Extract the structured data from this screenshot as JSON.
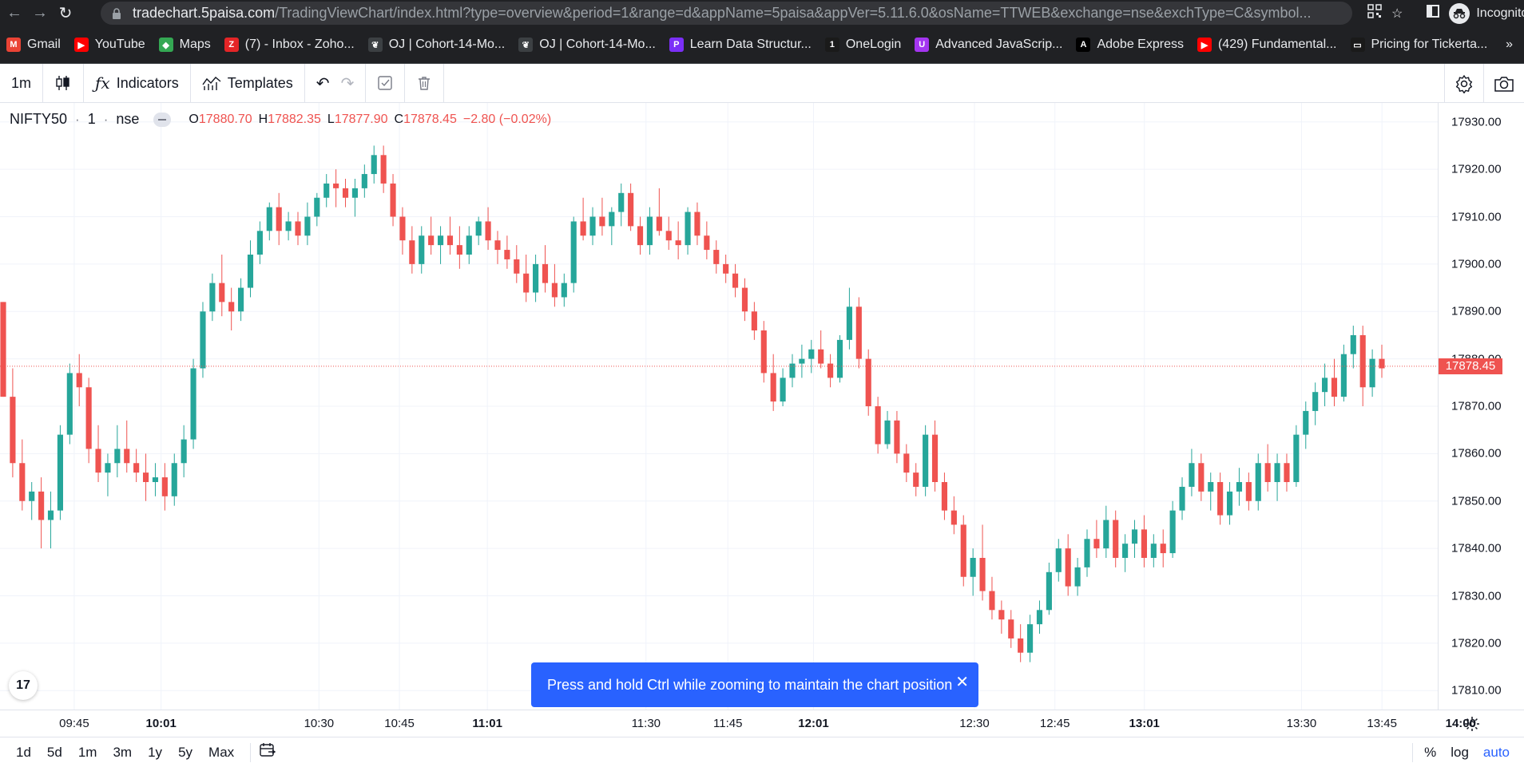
{
  "browser": {
    "url_host": "tradechart.5paisa.com",
    "url_path": "/TradingViewChart/index.html?type=overview&period=1&range=d&appName=5paisa&appVer=5.11.6.0&osName=TTWEB&exchange=nse&exchType=C&symbol...",
    "incognito_label": "Incognito"
  },
  "bookmarks": [
    {
      "label": "Gmail",
      "icon": "gmail-icon",
      "color": "#ea4335",
      "glyph": "M"
    },
    {
      "label": "YouTube",
      "icon": "youtube-icon",
      "color": "#ff0000",
      "glyph": "▶"
    },
    {
      "label": "Maps",
      "icon": "maps-icon",
      "color": "#34a853",
      "glyph": "◆"
    },
    {
      "label": "(7) - Inbox - Zoho...",
      "icon": "zoho-icon",
      "color": "#e42527",
      "glyph": "Z"
    },
    {
      "label": "OJ | Cohort-14-Mo...",
      "icon": "oj-icon",
      "color": "#3c4043",
      "glyph": "❦"
    },
    {
      "label": "OJ | Cohort-14-Mo...",
      "icon": "oj-icon",
      "color": "#3c4043",
      "glyph": "❦"
    },
    {
      "label": "Learn Data Structur...",
      "icon": "learn-icon",
      "color": "#7b2ff7",
      "glyph": "P"
    },
    {
      "label": "OneLogin",
      "icon": "onelogin-icon",
      "color": "#1a1a1a",
      "glyph": "1"
    },
    {
      "label": "Advanced JavaScrip...",
      "icon": "udemy-icon",
      "color": "#a435f0",
      "glyph": "U"
    },
    {
      "label": "Adobe Express",
      "icon": "adobe-icon",
      "color": "#000000",
      "glyph": "A"
    },
    {
      "label": "(429) Fundamental...",
      "icon": "youtube-icon",
      "color": "#ff0000",
      "glyph": "▶"
    },
    {
      "label": "Pricing for Tickerta...",
      "icon": "tickertape-icon",
      "color": "#1a1a1a",
      "glyph": "▭"
    }
  ],
  "bookmarks_more": "»",
  "toolbar": {
    "interval": "1m",
    "indicators": "Indicators",
    "templates": "Templates"
  },
  "legend": {
    "symbol": "NIFTY50",
    "interval": "1",
    "exchange": "nse",
    "open_key": "O",
    "open": "17880.70",
    "high_key": "H",
    "high": "17882.35",
    "low_key": "L",
    "low": "17877.90",
    "close_key": "C",
    "close": "17878.45",
    "change": "−2.80 (−0.02%)"
  },
  "price_axis": {
    "ticks": [
      "17930.00",
      "17920.00",
      "17910.00",
      "17900.00",
      "17890.00",
      "17880.00",
      "17870.00",
      "17860.00",
      "17850.00",
      "17840.00",
      "17830.00",
      "17820.00",
      "17810.00"
    ],
    "tick_values": [
      17930,
      17920,
      17910,
      17900,
      17890,
      17880,
      17870,
      17860,
      17850,
      17840,
      17830,
      17820,
      17810
    ],
    "last_price": "17878.45",
    "last_value": 17878.45
  },
  "time_axis": {
    "ticks": [
      {
        "label": "09:45",
        "bold": false,
        "x": 0.0487
      },
      {
        "label": "10:01",
        "bold": true,
        "x": 0.1057
      },
      {
        "label": "10:30",
        "bold": false,
        "x": 0.2093
      },
      {
        "label": "10:45",
        "bold": false,
        "x": 0.2621
      },
      {
        "label": "11:01",
        "bold": true,
        "x": 0.3198
      },
      {
        "label": "11:30",
        "bold": false,
        "x": 0.4239
      },
      {
        "label": "11:45",
        "bold": false,
        "x": 0.4776
      },
      {
        "label": "12:01",
        "bold": true,
        "x": 0.5338
      },
      {
        "label": "12:30",
        "bold": false,
        "x": 0.6394
      },
      {
        "label": "12:45",
        "bold": false,
        "x": 0.6922
      },
      {
        "label": "13:01",
        "bold": true,
        "x": 0.7509
      },
      {
        "label": "13:30",
        "bold": false,
        "x": 0.854
      },
      {
        "label": "13:45",
        "bold": false,
        "x": 0.9068
      },
      {
        "label": "14:00",
        "bold": true,
        "x": 0.9585
      }
    ]
  },
  "toast": {
    "message": "Press and hold Ctrl while zooming to maintain the chart position"
  },
  "ranges": [
    "1d",
    "5d",
    "1m",
    "3m",
    "1y",
    "5y",
    "Max"
  ],
  "bottom_options": {
    "percent": "%",
    "log": "log",
    "auto": "auto"
  },
  "tv_logo": "17",
  "colors": {
    "up": "#26a69a",
    "down": "#ef5350",
    "accent": "#2962ff"
  },
  "chart_data": {
    "type": "candlestick",
    "symbol": "NIFTY50",
    "ylim": [
      17806,
      17934
    ],
    "candles": [
      [
        17892,
        17892,
        17872,
        17872
      ],
      [
        17872,
        17878,
        17855,
        17858
      ],
      [
        17858,
        17863,
        17848,
        17850
      ],
      [
        17850,
        17854,
        17846,
        17852
      ],
      [
        17852,
        17855,
        17840,
        17846
      ],
      [
        17846,
        17852,
        17840,
        17848
      ],
      [
        17848,
        17866,
        17846,
        17864
      ],
      [
        17864,
        17879,
        17862,
        17877
      ],
      [
        17877,
        17881,
        17870,
        17874
      ],
      [
        17874,
        17876,
        17858,
        17861
      ],
      [
        17861,
        17866,
        17854,
        17856
      ],
      [
        17856,
        17860,
        17851,
        17858
      ],
      [
        17858,
        17866,
        17855,
        17861
      ],
      [
        17861,
        17867,
        17856,
        17858
      ],
      [
        17858,
        17861,
        17854,
        17856
      ],
      [
        17856,
        17860,
        17850,
        17854
      ],
      [
        17854,
        17858,
        17851,
        17855
      ],
      [
        17855,
        17858,
        17848,
        17851
      ],
      [
        17851,
        17860,
        17849,
        17858
      ],
      [
        17858,
        17866,
        17855,
        17863
      ],
      [
        17863,
        17880,
        17861,
        17878
      ],
      [
        17878,
        17892,
        17876,
        17890
      ],
      [
        17890,
        17898,
        17888,
        17896
      ],
      [
        17896,
        17902,
        17889,
        17892
      ],
      [
        17892,
        17895,
        17886,
        17890
      ],
      [
        17890,
        17897,
        17888,
        17895
      ],
      [
        17895,
        17905,
        17893,
        17902
      ],
      [
        17902,
        17909,
        17900,
        17907
      ],
      [
        17907,
        17913,
        17905,
        17912
      ],
      [
        17912,
        17915,
        17904,
        17907
      ],
      [
        17907,
        17911,
        17905,
        17909
      ],
      [
        17909,
        17911,
        17904,
        17906
      ],
      [
        17906,
        17913,
        17904,
        17910
      ],
      [
        17910,
        17915,
        17908,
        17914
      ],
      [
        17914,
        17919,
        17912,
        17917
      ],
      [
        17917,
        17920,
        17912,
        17916
      ],
      [
        17916,
        17918,
        17912,
        17914
      ],
      [
        17914,
        17918,
        17910,
        17916
      ],
      [
        17916,
        17921,
        17914,
        17919
      ],
      [
        17919,
        17925,
        17917,
        17923
      ],
      [
        17923,
        17925,
        17915,
        17917
      ],
      [
        17917,
        17919,
        17908,
        17910
      ],
      [
        17910,
        17912,
        17902,
        17905
      ],
      [
        17905,
        17908,
        17898,
        17900
      ],
      [
        17900,
        17908,
        17898,
        17906
      ],
      [
        17906,
        17910,
        17902,
        17904
      ],
      [
        17904,
        17908,
        17900,
        17906
      ],
      [
        17906,
        17910,
        17902,
        17904
      ],
      [
        17904,
        17908,
        17899,
        17902
      ],
      [
        17902,
        17908,
        17900,
        17906
      ],
      [
        17906,
        17910,
        17904,
        17909
      ],
      [
        17909,
        17912,
        17903,
        17905
      ],
      [
        17905,
        17907,
        17900,
        17903
      ],
      [
        17903,
        17906,
        17899,
        17901
      ],
      [
        17901,
        17904,
        17896,
        17898
      ],
      [
        17898,
        17902,
        17892,
        17894
      ],
      [
        17894,
        17902,
        17892,
        17900
      ],
      [
        17900,
        17904,
        17894,
        17896
      ],
      [
        17896,
        17900,
        17891,
        17893
      ],
      [
        17893,
        17898,
        17891,
        17896
      ],
      [
        17896,
        17910,
        17894,
        17909
      ],
      [
        17909,
        17914,
        17905,
        17906
      ],
      [
        17906,
        17912,
        17904,
        17910
      ],
      [
        17910,
        17914,
        17906,
        17908
      ],
      [
        17908,
        17912,
        17904,
        17911
      ],
      [
        17911,
        17917,
        17908,
        17915
      ],
      [
        17915,
        17917,
        17907,
        17908
      ],
      [
        17908,
        17910,
        17902,
        17904
      ],
      [
        17904,
        17912,
        17902,
        17910
      ],
      [
        17910,
        17916,
        17906,
        17907
      ],
      [
        17907,
        17910,
        17903,
        17905
      ],
      [
        17905,
        17909,
        17901,
        17904
      ],
      [
        17904,
        17912,
        17902,
        17911
      ],
      [
        17911,
        17913,
        17904,
        17906
      ],
      [
        17906,
        17909,
        17901,
        17903
      ],
      [
        17903,
        17905,
        17898,
        17900
      ],
      [
        17900,
        17902,
        17896,
        17898
      ],
      [
        17898,
        17900,
        17893,
        17895
      ],
      [
        17895,
        17897,
        17888,
        17890
      ],
      [
        17890,
        17892,
        17884,
        17886
      ],
      [
        17886,
        17888,
        17875,
        17877
      ],
      [
        17877,
        17881,
        17869,
        17871
      ],
      [
        17871,
        17878,
        17870,
        17876
      ],
      [
        17876,
        17881,
        17874,
        17879
      ],
      [
        17879,
        17883,
        17876,
        17880
      ],
      [
        17880,
        17884,
        17877,
        17882
      ],
      [
        17882,
        17886,
        17878,
        17879
      ],
      [
        17879,
        17881,
        17874,
        17876
      ],
      [
        17876,
        17885,
        17875,
        17884
      ],
      [
        17884,
        17895,
        17882,
        17891
      ],
      [
        17891,
        17893,
        17878,
        17880
      ],
      [
        17880,
        17882,
        17868,
        17870
      ],
      [
        17870,
        17872,
        17860,
        17862
      ],
      [
        17862,
        17869,
        17861,
        17867
      ],
      [
        17867,
        17869,
        17858,
        17860
      ],
      [
        17860,
        17862,
        17854,
        17856
      ],
      [
        17856,
        17858,
        17851,
        17853
      ],
      [
        17853,
        17866,
        17851,
        17864
      ],
      [
        17864,
        17867,
        17852,
        17854
      ],
      [
        17854,
        17856,
        17846,
        17848
      ],
      [
        17848,
        17851,
        17843,
        17845
      ],
      [
        17845,
        17847,
        17832,
        17834
      ],
      [
        17834,
        17840,
        17830,
        17838
      ],
      [
        17838,
        17845,
        17829,
        17831
      ],
      [
        17831,
        17834,
        17825,
        17827
      ],
      [
        17827,
        17829,
        17822,
        17825
      ],
      [
        17825,
        17827,
        17819,
        17821
      ],
      [
        17821,
        17824,
        17816,
        17818
      ],
      [
        17818,
        17826,
        17816,
        17824
      ],
      [
        17824,
        17829,
        17822,
        17827
      ],
      [
        17827,
        17837,
        17826,
        17835
      ],
      [
        17835,
        17842,
        17833,
        17840
      ],
      [
        17840,
        17843,
        17830,
        17832
      ],
      [
        17832,
        17838,
        17830,
        17836
      ],
      [
        17836,
        17844,
        17834,
        17842
      ],
      [
        17842,
        17846,
        17838,
        17840
      ],
      [
        17840,
        17849,
        17838,
        17846
      ],
      [
        17846,
        17848,
        17836,
        17838
      ],
      [
        17838,
        17843,
        17835,
        17841
      ],
      [
        17841,
        17846,
        17838,
        17844
      ],
      [
        17844,
        17847,
        17836,
        17838
      ],
      [
        17838,
        17843,
        17836,
        17841
      ],
      [
        17841,
        17844,
        17836,
        17839
      ],
      [
        17839,
        17850,
        17838,
        17848
      ],
      [
        17848,
        17855,
        17846,
        17853
      ],
      [
        17853,
        17861,
        17851,
        17858
      ],
      [
        17858,
        17860,
        17850,
        17852
      ],
      [
        17852,
        17856,
        17848,
        17854
      ],
      [
        17854,
        17856,
        17845,
        17847
      ],
      [
        17847,
        17854,
        17845,
        17852
      ],
      [
        17852,
        17857,
        17849,
        17854
      ],
      [
        17854,
        17856,
        17848,
        17850
      ],
      [
        17850,
        17860,
        17848,
        17858
      ],
      [
        17858,
        17862,
        17852,
        17854
      ],
      [
        17854,
        17860,
        17850,
        17858
      ],
      [
        17858,
        17860,
        17852,
        17854
      ],
      [
        17854,
        17866,
        17853,
        17864
      ],
      [
        17864,
        17871,
        17861,
        17869
      ],
      [
        17869,
        17875,
        17866,
        17873
      ],
      [
        17873,
        17879,
        17870,
        17876
      ],
      [
        17876,
        17880,
        17870,
        17872
      ],
      [
        17872,
        17883,
        17871,
        17881
      ],
      [
        17881,
        17887,
        17878,
        17885
      ],
      [
        17885,
        17887,
        17870,
        17874
      ],
      [
        17874,
        17882,
        17872,
        17880
      ],
      [
        17880,
        17883,
        17876,
        17878
      ]
    ]
  }
}
